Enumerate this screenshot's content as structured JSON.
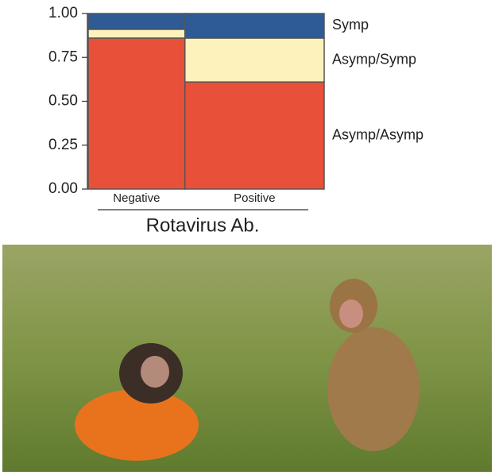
{
  "chart_data": {
    "type": "mosaic",
    "xlabel": "Rotavirus Ab.",
    "categories": [
      "Negative",
      "Positive"
    ],
    "category_widths": [
      0.41,
      0.59
    ],
    "series": [
      {
        "name": "Asymp/Asymp",
        "color": "#e8503a",
        "values": [
          0.86,
          0.61
        ]
      },
      {
        "name": "Asymp/Symp",
        "color": "#fdf2bb",
        "values": [
          0.05,
          0.25
        ]
      },
      {
        "name": "Symp",
        "color": "#2e5b95",
        "values": [
          0.09,
          0.14
        ]
      }
    ],
    "ylim": [
      0,
      1
    ],
    "yticks": [
      {
        "value": 0,
        "label": "0.00"
      },
      {
        "value": 0.25,
        "label": "0.25"
      },
      {
        "value": 0.5,
        "label": "0.50"
      },
      {
        "value": 0.75,
        "label": "0.75"
      },
      {
        "value": 1,
        "label": "1.00"
      }
    ]
  }
}
